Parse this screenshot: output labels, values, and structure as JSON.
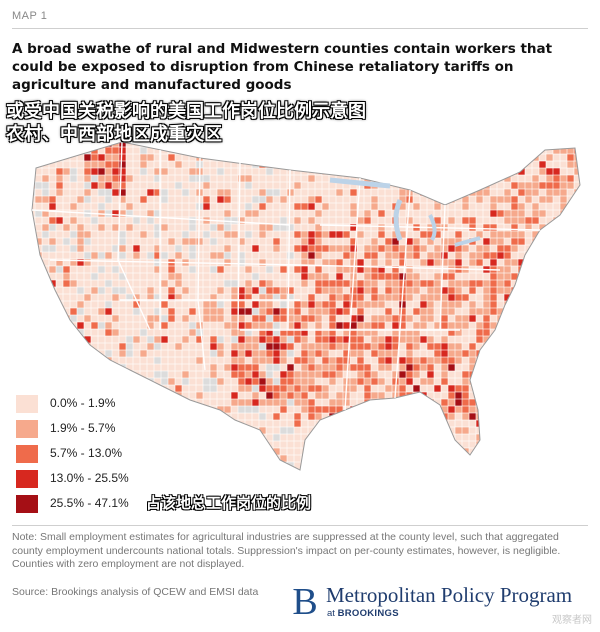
{
  "header": {
    "map_label": "MAP 1",
    "title": "A broad swathe of rural and Midwestern counties contain workers that could be exposed to disruption from Chinese retaliatory tariffs on agriculture and manufactured goods"
  },
  "overlay": {
    "cn_title_line1": "或受中国关税影响的美国工作岗位比例示意图",
    "cn_title_line2": "农村、中西部地区成重灾区",
    "cn_legend_caption": "占该地总工作岗位的比例"
  },
  "legend": {
    "items": [
      {
        "label": "0.0% - 1.9%",
        "color": "#fbe0d4"
      },
      {
        "label": "1.9% - 5.7%",
        "color": "#f6a98c"
      },
      {
        "label": "5.7% - 13.0%",
        "color": "#ef6b4b"
      },
      {
        "label": "13.0% - 25.5%",
        "color": "#d7281f"
      },
      {
        "label": "25.5% - 47.1%",
        "color": "#a50f15"
      }
    ],
    "no_data_color": "#dcdcdc"
  },
  "footer": {
    "note": "Note: Small employment estimates for agricultural industries are suppressed at the county level, such that aggregated county employment undercounts national totals. Suppression's impact on per-county estimates, however, is negligible. Counties with zero employment are not displayed.",
    "source": "Source: Brookings analysis of QCEW and EMSI data",
    "logo_mark": "B",
    "logo_name": "Metropolitan Policy Program",
    "logo_sub_prefix": "at ",
    "logo_sub_org": "BROOKINGS"
  },
  "watermark": "观察者网"
}
